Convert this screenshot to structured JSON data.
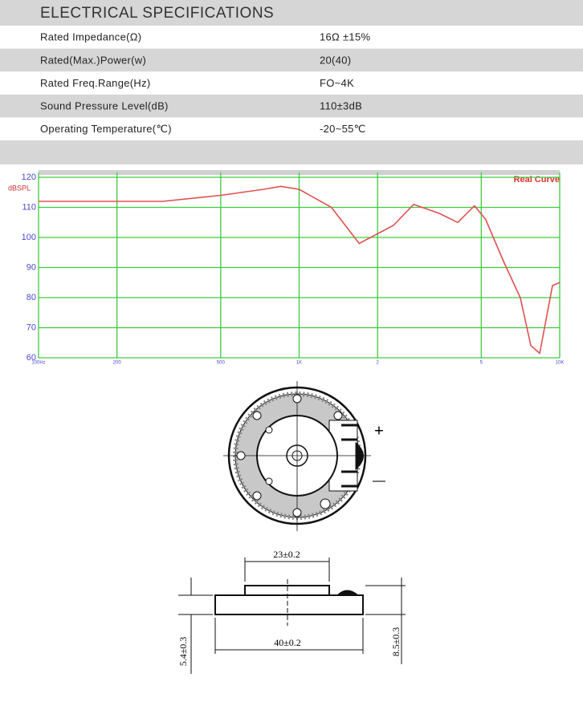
{
  "header": {
    "title": "ELECTRICAL SPECIFICATIONS"
  },
  "table": {
    "rows": [
      [
        "Rated  Impedance(Ω)",
        "16Ω ±15%"
      ],
      [
        "Rated(Max.)Power(w)",
        "20(40)"
      ],
      [
        "Rated  Freq.Range(Hz)",
        "FO~4K"
      ],
      [
        "Sound  Pressure  Level(dB)",
        "110±3dB"
      ],
      [
        "Operating  Temperature(℃)",
        "-20~55℃"
      ]
    ]
  },
  "chart_data": {
    "type": "line",
    "y_label": "dBSPL",
    "x": [
      100,
      200,
      300,
      500,
      730,
      850,
      1000,
      1330,
      1700,
      2300,
      2750,
      3450,
      4060,
      4710,
      5200,
      6090,
      7060,
      7750,
      8380,
      9380,
      10000
    ],
    "series": [
      {
        "name": "Real Curve",
        "color": "#e05050",
        "values": [
          112,
          112,
          112,
          114,
          116,
          117,
          116,
          110,
          98,
          104,
          111,
          108,
          105,
          110.5,
          106,
          92,
          80,
          64,
          61.5,
          84,
          85
        ]
      }
    ],
    "xlim": [
      100,
      10000
    ],
    "xlog": true,
    "xticks": [
      {
        "value": 100,
        "label": "100Hz"
      },
      200,
      500,
      {
        "value": 1000,
        "label": "1K"
      },
      {
        "value": 2000,
        "label": "2"
      },
      {
        "value": 5000,
        "label": "5"
      },
      {
        "value": 10000,
        "label": "10K"
      }
    ],
    "ylim": [
      60,
      120
    ],
    "yticks": [
      60,
      70,
      80,
      90,
      100,
      110,
      120
    ],
    "grid": true,
    "grid_color": "#3ccc3c",
    "legend": "upper right"
  },
  "diagram": {
    "plus": "+",
    "minus": "—",
    "dims": {
      "inner": "23±0.2",
      "outer": "40±0.2",
      "height_base": "5.4±0.3",
      "height_total": "8.5±0.3"
    }
  }
}
